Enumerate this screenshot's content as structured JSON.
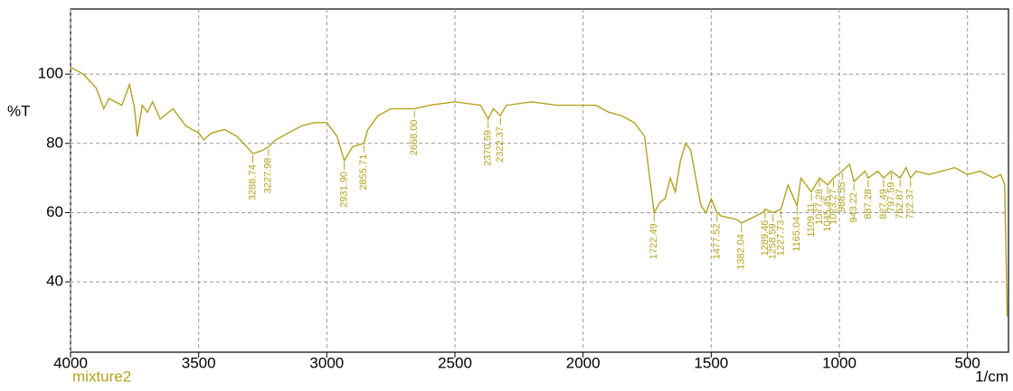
{
  "chart_data": {
    "type": "line",
    "y_label": "%T",
    "x_label": "1/cm",
    "series": [
      {
        "name": "mixture2",
        "color": "#b3a21f",
        "x": [
          4000,
          3950,
          3900,
          3870,
          3850,
          3800,
          3770,
          3750,
          3740,
          3720,
          3700,
          3680,
          3650,
          3600,
          3550,
          3500,
          3480,
          3450,
          3400,
          3350,
          3300,
          3288.74,
          3250,
          3227.98,
          3200,
          3100,
          3050,
          3000,
          2960,
          2931.9,
          2900,
          2855.71,
          2840,
          2800,
          2750,
          2700,
          2658,
          2600,
          2500,
          2400,
          2370.59,
          2350,
          2322.37,
          2300,
          2200,
          2100,
          2000,
          1950,
          1900,
          1850,
          1800,
          1760,
          1740,
          1722.49,
          1700,
          1680,
          1660,
          1640,
          1620,
          1600,
          1580,
          1560,
          1540,
          1520,
          1500,
          1477.52,
          1460,
          1400,
          1382.04,
          1300,
          1289.46,
          1258.59,
          1227.73,
          1200,
          1165.04,
          1150,
          1109.11,
          1077.28,
          1045.45,
          1023.27,
          988.55,
          960,
          943.22,
          900,
          887.28,
          850,
          827.49,
          797.59,
          762.87,
          740,
          722.37,
          700,
          650,
          600,
          550,
          500,
          450,
          400,
          370,
          355,
          345
        ],
        "values": [
          102,
          100,
          96,
          90,
          93,
          91,
          97,
          90,
          82,
          91,
          89,
          92,
          87,
          90,
          85,
          83,
          81,
          83,
          84,
          82,
          78,
          77,
          78,
          79,
          81,
          85,
          86,
          86,
          82,
          75,
          79,
          80,
          84,
          88,
          90,
          90,
          90,
          91,
          92,
          91,
          87,
          90,
          88,
          91,
          92,
          91,
          91,
          91,
          89,
          88,
          86,
          82,
          70,
          60,
          63,
          64,
          70,
          66,
          75,
          80,
          78,
          70,
          62,
          60,
          64,
          60,
          59,
          58,
          57,
          60,
          61,
          60,
          61,
          68,
          62,
          70,
          66,
          70,
          68,
          70,
          72,
          74,
          69,
          72,
          70,
          72,
          70,
          72,
          70,
          73,
          70,
          72,
          71,
          72,
          73,
          71,
          72,
          70,
          71,
          68,
          30
        ]
      }
    ],
    "peaks": [
      {
        "value": 3288.74,
        "label": "3288.74"
      },
      {
        "value": 3227.98,
        "label": "3227.98"
      },
      {
        "value": 2931.9,
        "label": "2931.90"
      },
      {
        "value": 2855.71,
        "label": "2855.71"
      },
      {
        "value": 2658,
        "label": "2658.00"
      },
      {
        "value": 2370.59,
        "label": "2370.59"
      },
      {
        "value": 2322.37,
        "label": "2322.37"
      },
      {
        "value": 1722.49,
        "label": "1722.49"
      },
      {
        "value": 1477.52,
        "label": "1477.52"
      },
      {
        "value": 1382.04,
        "label": "1382.04"
      },
      {
        "value": 1289.46,
        "label": "1289.46"
      },
      {
        "value": 1258.59,
        "label": "1258.59"
      },
      {
        "value": 1227.73,
        "label": "1227.73"
      },
      {
        "value": 1165.04,
        "label": "1165.04"
      },
      {
        "value": 1109.11,
        "label": "1109.11"
      },
      {
        "value": 1077.28,
        "label": "1077.28"
      },
      {
        "value": 1045.45,
        "label": "1045.45"
      },
      {
        "value": 1023.27,
        "label": "1023.27"
      },
      {
        "value": 988.55,
        "label": "988.55"
      },
      {
        "value": 943.22,
        "label": "943.22"
      },
      {
        "value": 887.28,
        "label": "887.28"
      },
      {
        "value": 827.49,
        "label": "827.49"
      },
      {
        "value": 797.59,
        "label": "797.59"
      },
      {
        "value": 762.87,
        "label": "762.87"
      },
      {
        "value": 722.37,
        "label": "722.37"
      }
    ],
    "xlim": [
      4000,
      340
    ],
    "ylim": [
      19.7,
      118.8
    ],
    "xticks": [
      4000,
      3500,
      3000,
      2500,
      2000,
      1500,
      1000,
      500
    ],
    "yticks": [
      40,
      60,
      80,
      100
    ],
    "grid": true
  }
}
